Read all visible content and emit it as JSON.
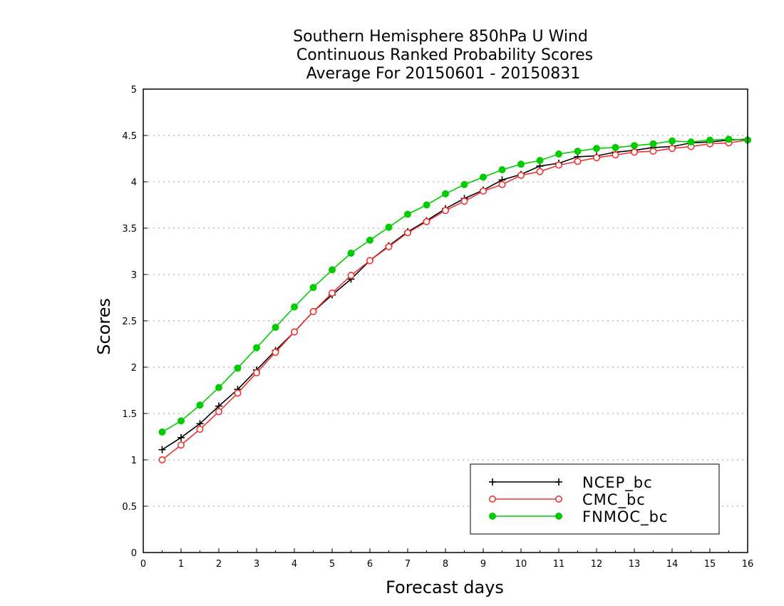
{
  "chart_data": {
    "type": "line",
    "title": [
      "Southern Hemisphere 850hPa U Wind",
      "Continuous Ranked Probability Scores",
      "Average For 20150601 - 20150831"
    ],
    "xlabel": "Forecast days",
    "ylabel": "Scores",
    "xlim": [
      0,
      16
    ],
    "ylim": [
      0,
      5
    ],
    "xticks": [
      "0",
      "1",
      "2",
      "3",
      "4",
      "5",
      "6",
      "7",
      "8",
      "9",
      "10",
      "11",
      "12",
      "13",
      "14",
      "15",
      "16"
    ],
    "yticks": [
      "0",
      "0.5",
      "1",
      "1.5",
      "2",
      "2.5",
      "3",
      "3.5",
      "4",
      "4.5",
      "5"
    ],
    "grid": "horizontal-dotted",
    "legend_position": "bottom-right",
    "x": [
      0.5,
      1,
      1.5,
      2,
      2.5,
      3,
      3.5,
      4,
      4.5,
      5,
      5.5,
      6,
      6.5,
      7,
      7.5,
      8,
      8.5,
      9,
      9.5,
      10,
      10.5,
      11,
      11.5,
      12,
      12.5,
      13,
      13.5,
      14,
      14.5,
      15,
      15.5,
      16
    ],
    "series": [
      {
        "name": "NCEP_bc",
        "color": "#000000",
        "marker": "plus",
        "values": [
          1.11,
          1.24,
          1.39,
          1.58,
          1.76,
          1.97,
          2.18,
          2.38,
          2.6,
          2.78,
          2.95,
          3.15,
          3.31,
          3.46,
          3.58,
          3.71,
          3.82,
          3.91,
          4.02,
          4.08,
          4.17,
          4.2,
          4.27,
          4.28,
          4.32,
          4.34,
          4.37,
          4.38,
          4.42,
          4.43,
          4.45,
          4.46
        ]
      },
      {
        "name": "CMC_bc",
        "color": "#ee3333",
        "marker": "open-circle",
        "values": [
          1.0,
          1.16,
          1.33,
          1.52,
          1.72,
          1.94,
          2.16,
          2.38,
          2.6,
          2.8,
          2.99,
          3.15,
          3.3,
          3.45,
          3.57,
          3.69,
          3.79,
          3.9,
          3.97,
          4.07,
          4.11,
          4.18,
          4.22,
          4.26,
          4.29,
          4.32,
          4.33,
          4.36,
          4.38,
          4.41,
          4.42,
          4.45
        ]
      },
      {
        "name": "FNMOC_bc",
        "color": "#00cc00",
        "marker": "filled-circle",
        "values": [
          1.3,
          1.42,
          1.59,
          1.78,
          1.99,
          2.21,
          2.43,
          2.65,
          2.86,
          3.05,
          3.23,
          3.37,
          3.51,
          3.65,
          3.75,
          3.87,
          3.97,
          4.05,
          4.13,
          4.19,
          4.23,
          4.3,
          4.33,
          4.36,
          4.37,
          4.39,
          4.41,
          4.44,
          4.43,
          4.45,
          4.46,
          4.45
        ]
      }
    ]
  }
}
